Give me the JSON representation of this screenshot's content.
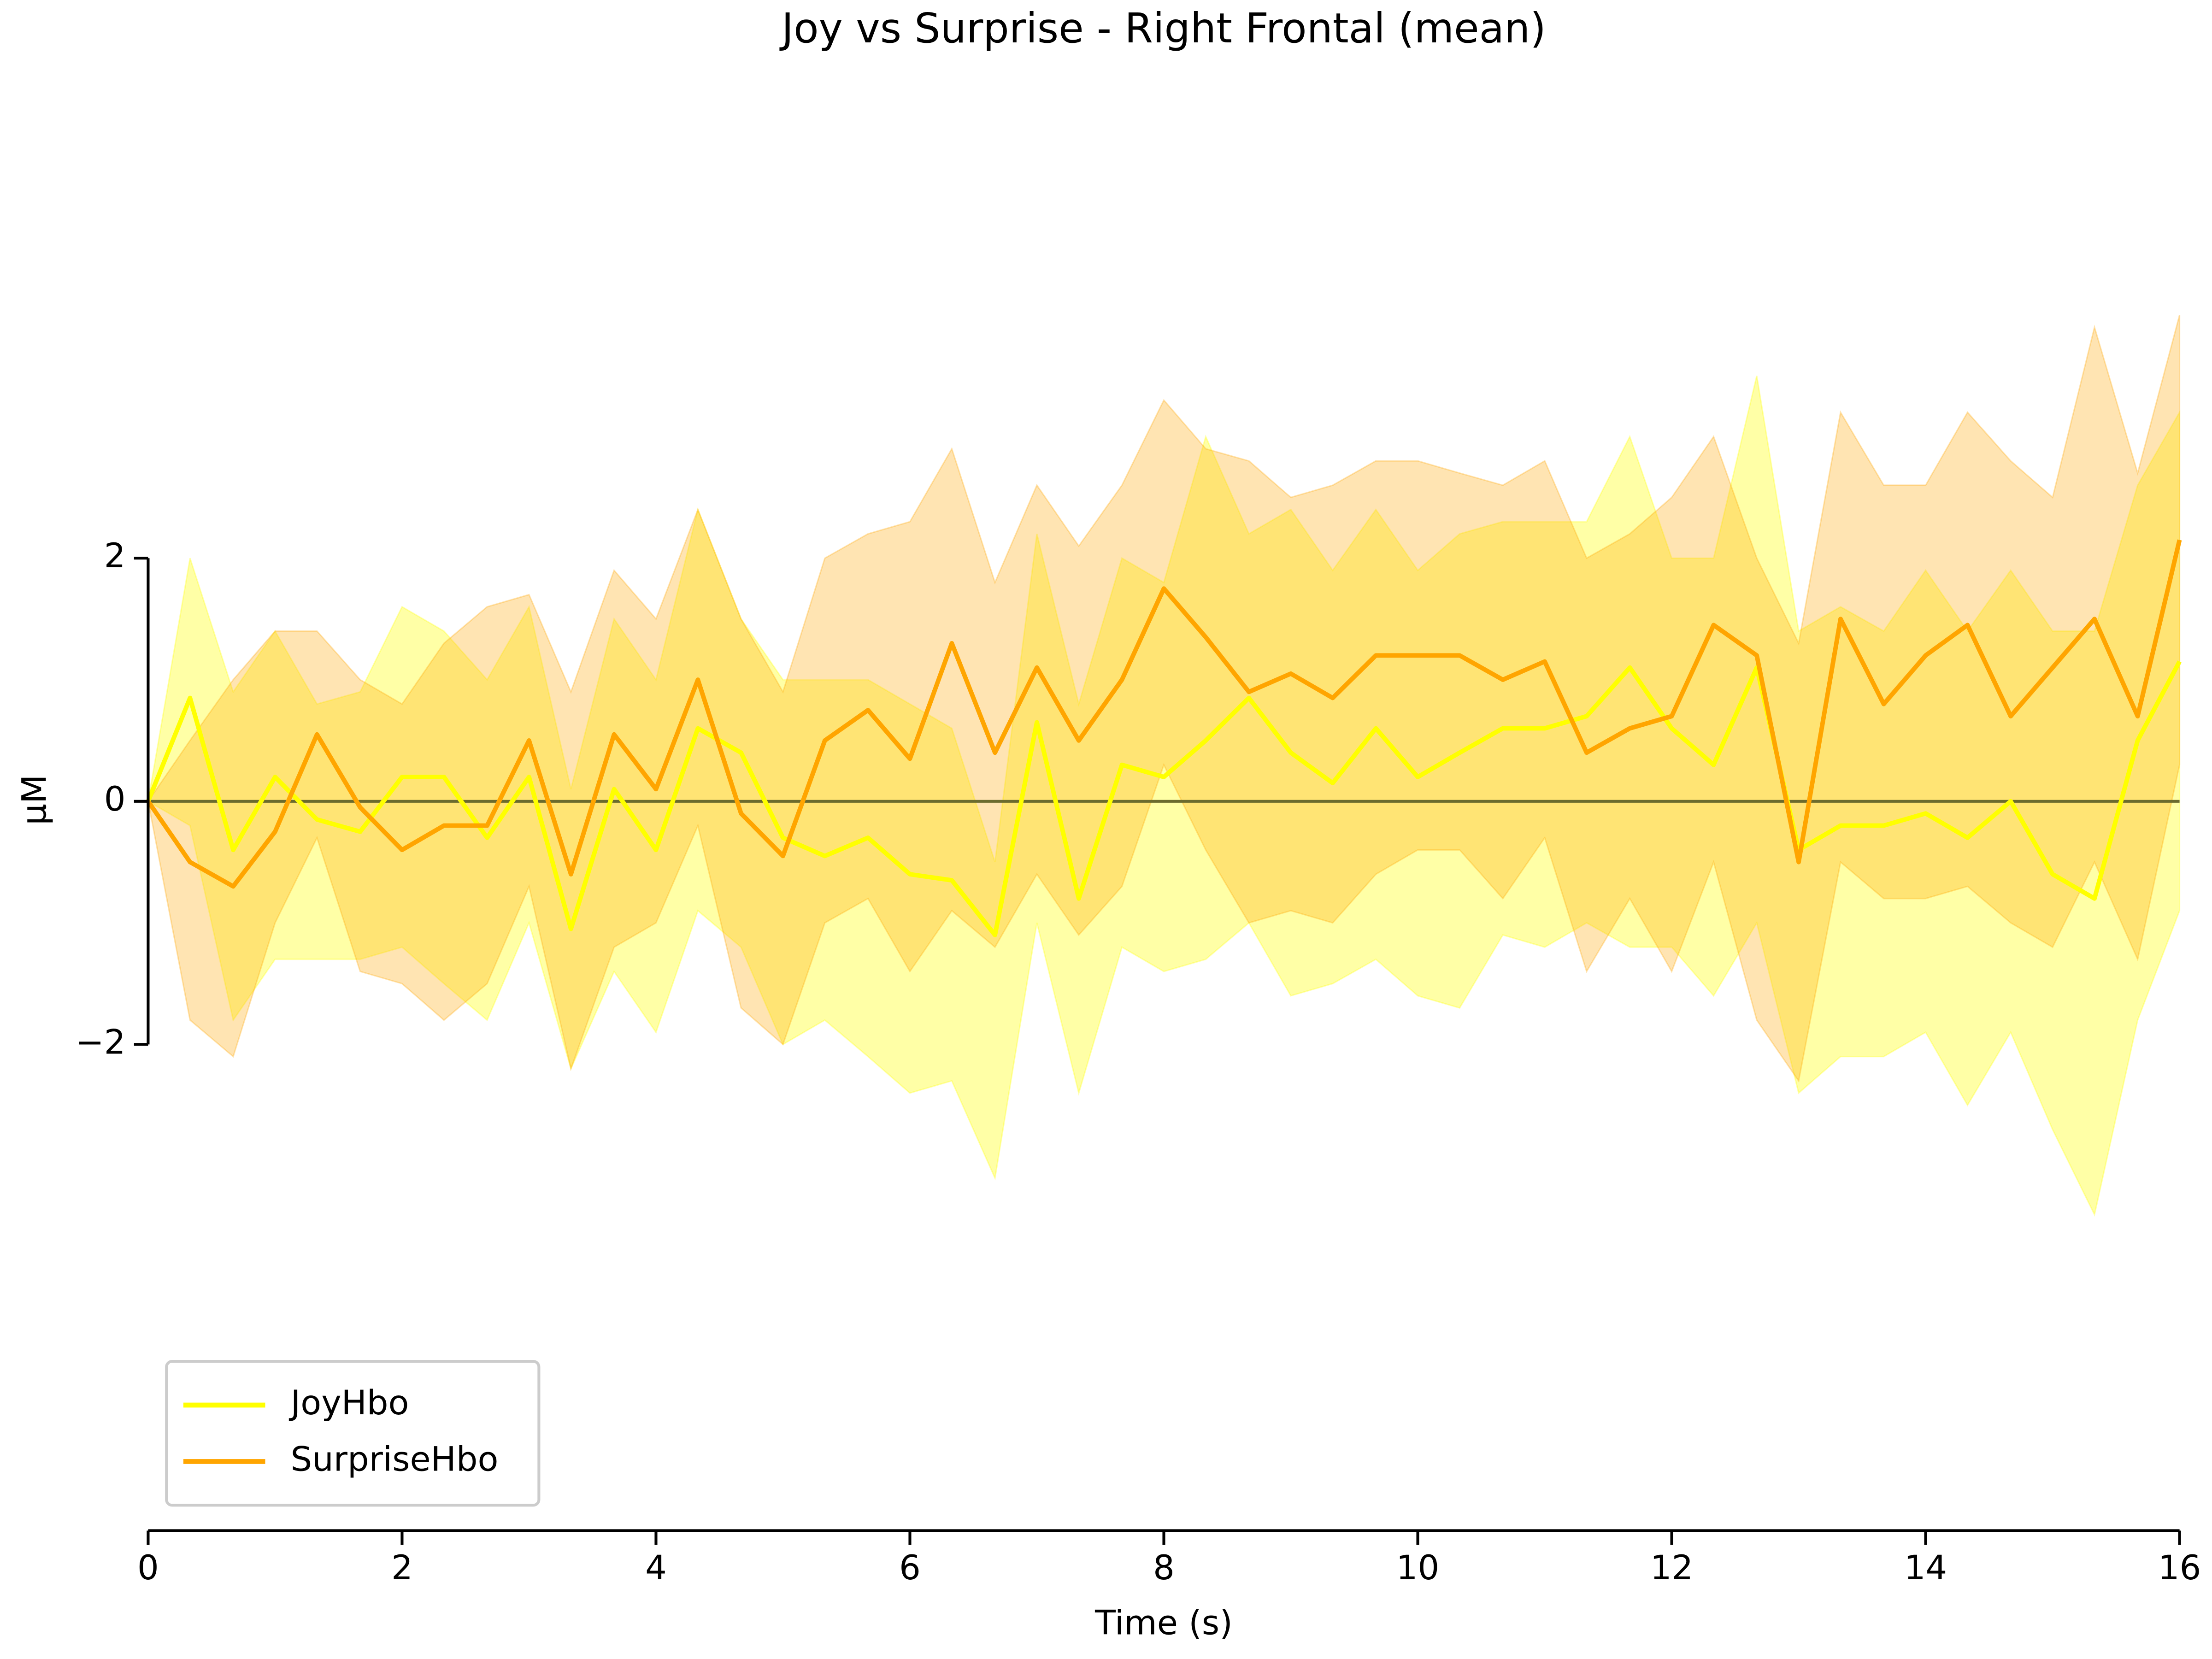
{
  "chart_data": {
    "type": "line",
    "title": "Joy vs Surprise - Right Frontal (mean)",
    "xlabel": "Time (s)",
    "ylabel": "µM",
    "x": [
      0,
      0.33,
      0.67,
      1,
      1.33,
      1.67,
      2,
      2.33,
      2.67,
      3,
      3.33,
      3.67,
      4,
      4.33,
      4.67,
      5,
      5.33,
      5.67,
      6,
      6.33,
      6.67,
      7,
      7.33,
      7.67,
      8,
      8.33,
      8.67,
      9,
      9.33,
      9.67,
      10,
      10.33,
      10.67,
      11,
      11.33,
      11.67,
      12,
      12.33,
      12.67,
      13,
      13.33,
      13.67,
      14,
      14.33,
      14.67,
      15,
      15.33,
      15.67,
      16
    ],
    "series": [
      {
        "name": "JoyHbo",
        "color": "#ffff00",
        "values": [
          0,
          0.85,
          -0.4,
          0.2,
          -0.15,
          -0.25,
          0.2,
          0.2,
          -0.3,
          0.2,
          -1.05,
          0.1,
          -0.4,
          0.6,
          0.4,
          -0.3,
          -0.45,
          -0.3,
          -0.6,
          -0.65,
          -1.1,
          0.65,
          -0.8,
          0.3,
          0.2,
          0.5,
          0.85,
          0.4,
          0.15,
          0.6,
          0.2,
          0.4,
          0.6,
          0.6,
          0.7,
          1.1,
          0.6,
          0.3,
          1.1,
          -0.4,
          -0.2,
          -0.2,
          -0.1,
          -0.3,
          0,
          -0.6,
          -0.8,
          0.5,
          1.15
        ],
        "upper": [
          0,
          2.0,
          0.9,
          1.4,
          0.8,
          0.9,
          1.6,
          1.4,
          1.0,
          1.6,
          0.1,
          1.5,
          1.0,
          2.4,
          1.5,
          1.0,
          1.0,
          1.0,
          0.8,
          0.6,
          -0.5,
          2.2,
          0.8,
          2.0,
          1.8,
          3.0,
          2.2,
          2.4,
          1.9,
          2.4,
          1.9,
          2.2,
          2.3,
          2.3,
          2.3,
          3.0,
          2.0,
          2.0,
          3.5,
          1.4,
          1.6,
          1.4,
          1.9,
          1.4,
          1.9,
          1.4,
          1.4,
          2.6,
          3.2
        ],
        "lower": [
          0,
          -0.2,
          -1.8,
          -1.3,
          -1.3,
          -1.3,
          -1.2,
          -1.5,
          -1.8,
          -1.0,
          -2.2,
          -1.4,
          -1.9,
          -0.9,
          -1.2,
          -2.0,
          -1.8,
          -2.1,
          -2.4,
          -2.3,
          -3.1,
          -1.0,
          -2.4,
          -1.2,
          -1.4,
          -1.3,
          -1.0,
          -1.6,
          -1.5,
          -1.3,
          -1.6,
          -1.7,
          -1.1,
          -1.2,
          -1.0,
          -1.2,
          -1.2,
          -1.6,
          -1.0,
          -2.4,
          -2.1,
          -2.1,
          -1.9,
          -2.5,
          -1.9,
          -2.7,
          -3.4,
          -1.8,
          -0.9
        ]
      },
      {
        "name": "SurpriseHbo",
        "color": "#ffa500",
        "values": [
          0,
          -0.5,
          -0.7,
          -0.25,
          0.55,
          -0.05,
          -0.4,
          -0.2,
          -0.2,
          0.5,
          -0.6,
          0.55,
          0.1,
          1.0,
          -0.1,
          -0.45,
          0.5,
          0.75,
          0.35,
          1.3,
          0.4,
          1.1,
          0.5,
          1.0,
          1.75,
          1.35,
          0.9,
          1.05,
          0.85,
          1.2,
          1.2,
          1.2,
          1.0,
          1.15,
          0.4,
          0.6,
          0.7,
          1.45,
          1.2,
          -0.5,
          1.5,
          0.8,
          1.2,
          1.45,
          0.7,
          1.1,
          1.5,
          0.7,
          2.15
        ],
        "upper": [
          0,
          0.5,
          1.0,
          1.4,
          1.4,
          1.0,
          0.8,
          1.3,
          1.6,
          1.7,
          0.9,
          1.9,
          1.5,
          2.4,
          1.5,
          0.9,
          2.0,
          2.2,
          2.3,
          2.9,
          1.8,
          2.6,
          2.1,
          2.6,
          3.3,
          2.9,
          2.8,
          2.5,
          2.6,
          2.8,
          2.8,
          2.7,
          2.6,
          2.8,
          2.0,
          2.2,
          2.5,
          3.0,
          2.0,
          1.3,
          3.2,
          2.6,
          2.6,
          3.2,
          2.8,
          2.5,
          3.9,
          2.7,
          4.0
        ],
        "lower": [
          0,
          -1.8,
          -2.1,
          -1.0,
          -0.3,
          -1.4,
          -1.5,
          -1.8,
          -1.5,
          -0.7,
          -2.2,
          -1.2,
          -1.0,
          -0.2,
          -1.7,
          -2.0,
          -1.0,
          -0.8,
          -1.4,
          -0.9,
          -1.2,
          -0.6,
          -1.1,
          -0.7,
          0.3,
          -0.4,
          -1.0,
          -0.9,
          -1.0,
          -0.6,
          -0.4,
          -0.4,
          -0.8,
          -0.3,
          -1.4,
          -0.8,
          -1.4,
          -0.5,
          -1.8,
          -2.3,
          -0.5,
          -0.8,
          -0.8,
          -0.7,
          -1.0,
          -1.2,
          -0.5,
          -1.3,
          0.3
        ]
      }
    ],
    "xlim": [
      0,
      16
    ],
    "xticks": [
      0,
      2,
      4,
      6,
      8,
      10,
      12,
      14,
      16
    ],
    "ylim": [
      -6,
      6
    ],
    "yticks": [
      {
        "value": -2,
        "label": "−2"
      },
      0,
      2
    ],
    "legend": "lower left"
  }
}
